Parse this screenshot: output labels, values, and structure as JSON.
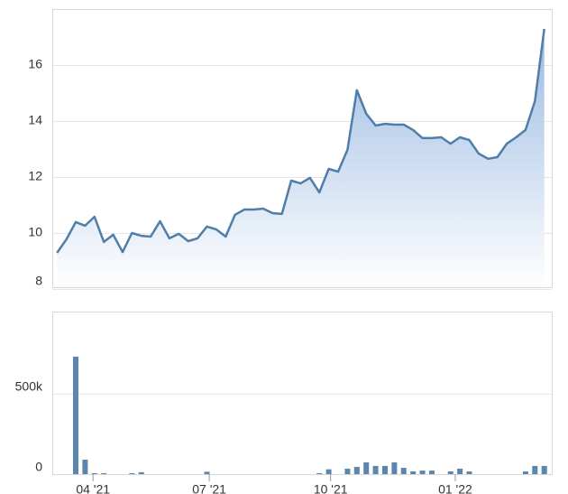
{
  "chart_data": [
    {
      "type": "area",
      "color": "#4f7ea8",
      "x": [
        0,
        1,
        2,
        3,
        4,
        5,
        6,
        7,
        8,
        9,
        10,
        11,
        12,
        13,
        14,
        15,
        16,
        17,
        18,
        19,
        20,
        21,
        22,
        23,
        24,
        25,
        26,
        27,
        28,
        29,
        30,
        31,
        32,
        33,
        34,
        35,
        36,
        37,
        38,
        39,
        40,
        41,
        42,
        43,
        44,
        45,
        46,
        47,
        48,
        49,
        50,
        51,
        52
      ],
      "values": [
        9.29,
        9.77,
        10.39,
        10.26,
        10.58,
        9.68,
        9.94,
        9.32,
        10.0,
        9.9,
        9.87,
        10.42,
        9.81,
        9.97,
        9.71,
        9.81,
        10.23,
        10.13,
        9.87,
        10.65,
        10.84,
        10.84,
        10.87,
        10.71,
        10.68,
        11.87,
        11.77,
        11.97,
        11.45,
        12.29,
        12.19,
        12.97,
        15.1,
        14.26,
        13.84,
        13.9,
        13.87,
        13.87,
        13.68,
        13.39,
        13.39,
        13.42,
        13.19,
        13.42,
        13.32,
        12.84,
        12.65,
        12.71,
        13.19,
        13.42,
        13.68,
        14.71,
        17.29
      ],
      "xlim": [
        -0.5,
        52.8
      ],
      "ylim": [
        8,
        18
      ],
      "yticks": [
        8,
        10,
        12,
        14,
        16
      ],
      "grid": true
    },
    {
      "type": "bar",
      "color": "#5b86b0",
      "x": [
        0,
        1,
        2,
        3,
        4,
        5,
        6,
        7,
        8,
        9,
        10,
        11,
        12,
        13,
        14,
        15,
        16,
        17,
        18,
        19,
        20,
        21,
        22,
        23,
        24,
        25,
        26,
        27,
        28,
        29,
        30,
        31,
        32,
        33,
        34,
        35,
        36,
        37,
        38,
        39,
        40,
        41,
        42,
        43,
        44,
        45,
        46,
        47,
        48,
        49,
        50,
        51,
        52
      ],
      "values": [
        0,
        0,
        730000,
        90000,
        6000,
        6000,
        0,
        0,
        6000,
        12000,
        0,
        0,
        0,
        0,
        0,
        0,
        15000,
        0,
        0,
        0,
        0,
        0,
        0,
        0,
        0,
        0,
        0,
        0,
        6000,
        30000,
        0,
        34000,
        45000,
        73000,
        51000,
        51000,
        73000,
        39000,
        17000,
        22000,
        22000,
        0,
        17000,
        34000,
        17000,
        0,
        0,
        0,
        0,
        0,
        17000,
        51000,
        51000
      ],
      "xlim": [
        -0.5,
        52.8
      ],
      "ylim": [
        0,
        1010000
      ],
      "yticks": [
        0,
        {
          "value": 500000,
          "label": "500k"
        }
      ],
      "xticks": [
        {
          "value": 3.85,
          "label": "04 '21"
        },
        {
          "value": 16.25,
          "label": "07 '21"
        },
        {
          "value": 29.2,
          "label": "10 '21"
        },
        {
          "value": 42.5,
          "label": "01 '22"
        }
      ],
      "grid": true
    }
  ]
}
